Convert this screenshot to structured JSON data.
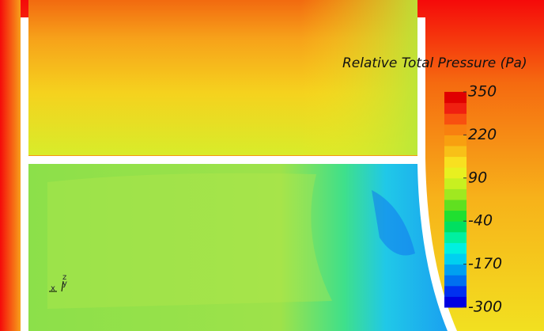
{
  "legend": {
    "title": "Relative Total Pressure (Pa)",
    "lim": [
      -300,
      350
    ],
    "ticks": [
      350,
      220,
      90,
      -40,
      -170,
      -300
    ]
  },
  "axes_triad": {
    "x": "x",
    "y": "y",
    "z": "z"
  }
}
